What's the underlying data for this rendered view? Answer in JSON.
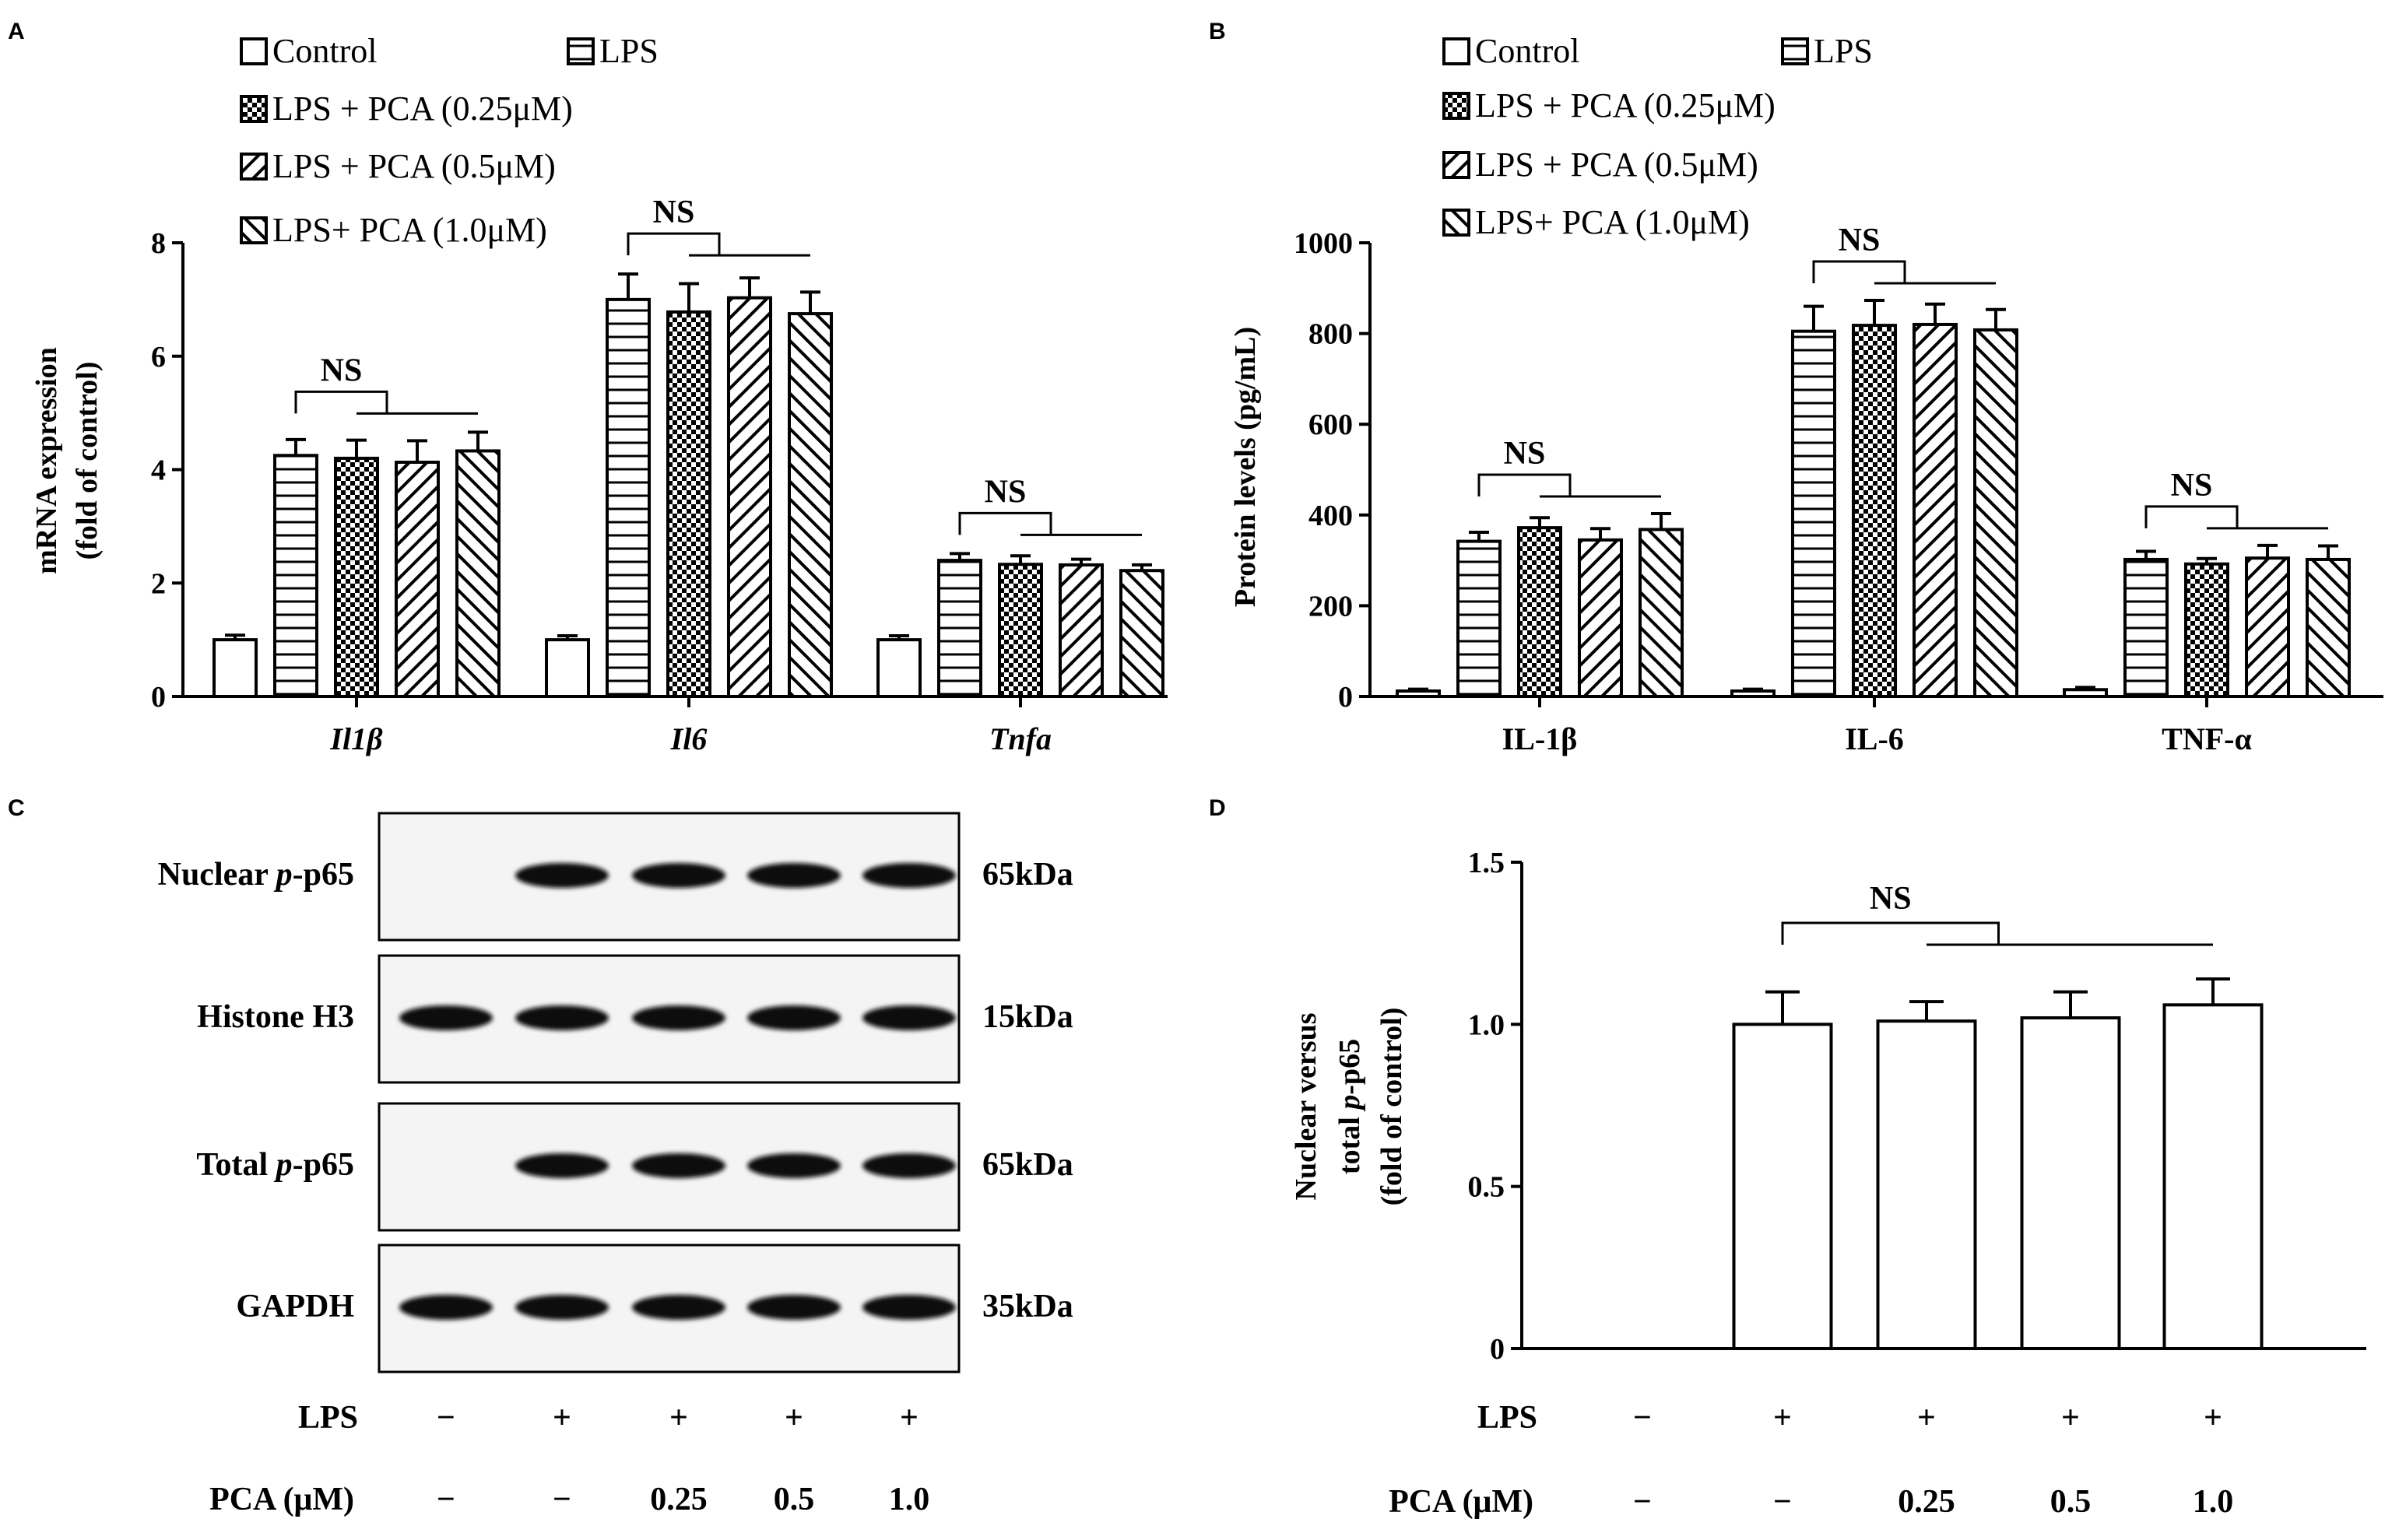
{
  "panels": {
    "A": "A",
    "B": "B",
    "C": "C",
    "D": "D"
  },
  "legend": {
    "control": "Control",
    "lps": "LPS",
    "pca025": "LPS + PCA (0.25μM)",
    "pca05": "LPS + PCA (0.5μM)",
    "pca10": "LPS+ PCA (1.0μM)"
  },
  "ns_label": "NS",
  "western": {
    "rows": [
      {
        "label_plain": "Nuclear ",
        "label_ital": "p",
        "label_rest": "-p65",
        "kda": "65kDa"
      },
      {
        "label_plain": "Histone H3",
        "label_ital": "",
        "label_rest": "",
        "kda": "15kDa"
      },
      {
        "label_plain": "Total ",
        "label_ital": "p",
        "label_rest": "-p65",
        "kda": "65kDa"
      },
      {
        "label_plain": "GAPDH",
        "label_ital": "",
        "label_rest": "",
        "kda": "35kDa"
      }
    ],
    "bands_present": [
      [
        false,
        true,
        true,
        true,
        true
      ],
      [
        true,
        true,
        true,
        true,
        true
      ],
      [
        false,
        true,
        true,
        true,
        true
      ],
      [
        true,
        true,
        true,
        true,
        true
      ]
    ],
    "lps_label": "LPS",
    "pca_label": "PCA (μM)",
    "lps_values": [
      "−",
      "+",
      "+",
      "+",
      "+"
    ],
    "pca_values": [
      "−",
      "−",
      "0.25",
      "0.5",
      "1.0"
    ]
  },
  "panel_d_conditions": {
    "lps_label": "LPS",
    "pca_label": "PCA (μM)",
    "lps_values": [
      "−",
      "+",
      "+",
      "+",
      "+"
    ],
    "pca_values": [
      "−",
      "−",
      "0.25",
      "0.5",
      "1.0"
    ]
  },
  "colors": {
    "ink": "#000000",
    "bar_fill": "#ffffff",
    "blot_bg": "#f4f4f4",
    "band": "#111111"
  },
  "chart_data": [
    {
      "panel": "A",
      "type": "bar",
      "ylabel_line1": "mRNA expression",
      "ylabel_line2": "(fold of control)",
      "ylim": [
        0,
        8
      ],
      "yticks": [
        "0",
        "2",
        "4",
        "6",
        "8"
      ],
      "categories": [
        "Il1β",
        "Il6",
        "Tnfa"
      ],
      "category_italic": true,
      "series": [
        {
          "name": "Control",
          "pattern": "empty",
          "values": [
            1.0,
            1.0,
            1.0
          ],
          "errors": [
            0.08,
            0.07,
            0.07
          ]
        },
        {
          "name": "LPS",
          "pattern": "hlines",
          "values": [
            4.25,
            7.0,
            2.4
          ],
          "errors": [
            0.28,
            0.45,
            0.12
          ]
        },
        {
          "name": "LPS + PCA (0.25μM)",
          "pattern": "check",
          "values": [
            4.2,
            6.78,
            2.33
          ],
          "errors": [
            0.32,
            0.5,
            0.15
          ]
        },
        {
          "name": "LPS + PCA (0.5μM)",
          "pattern": "diag-fwd",
          "values": [
            4.13,
            7.03,
            2.32
          ],
          "errors": [
            0.38,
            0.35,
            0.1
          ]
        },
        {
          "name": "LPS+ PCA (1.0μM)",
          "pattern": "diag-back",
          "values": [
            4.33,
            6.75,
            2.22
          ],
          "errors": [
            0.33,
            0.38,
            0.1
          ]
        }
      ],
      "ns_groups": [
        0,
        1,
        2
      ]
    },
    {
      "panel": "B",
      "type": "bar",
      "ylabel_line1": "Protein levels (pg/mL)",
      "ylim": [
        0,
        1000
      ],
      "yticks": [
        "0",
        "200",
        "400",
        "600",
        "800",
        "1000"
      ],
      "categories": [
        "IL-1β",
        "IL-6",
        "TNF-α"
      ],
      "category_italic": false,
      "series": [
        {
          "name": "Control",
          "pattern": "empty",
          "values": [
            12,
            12,
            15
          ],
          "errors": [
            4,
            4,
            5
          ]
        },
        {
          "name": "LPS",
          "pattern": "hlines",
          "values": [
            342,
            805,
            302
          ],
          "errors": [
            20,
            55,
            18
          ]
        },
        {
          "name": "LPS + PCA (0.25μM)",
          "pattern": "check",
          "values": [
            372,
            818,
            292
          ],
          "errors": [
            22,
            55,
            12
          ]
        },
        {
          "name": "LPS + PCA (0.5μM)",
          "pattern": "diag-fwd",
          "values": [
            345,
            820,
            305
          ],
          "errors": [
            25,
            45,
            28
          ]
        },
        {
          "name": "LPS+ PCA (1.0μM)",
          "pattern": "diag-back",
          "values": [
            368,
            808,
            302
          ],
          "errors": [
            35,
            45,
            30
          ]
        }
      ],
      "ns_groups": [
        0,
        1,
        2
      ]
    },
    {
      "panel": "D",
      "type": "bar",
      "ylabel_line1": "Nuclear versus",
      "ylabel_line2_plain": "total ",
      "ylabel_line2_ital": "p",
      "ylabel_line2_rest": "-p65",
      "ylabel_line3": "(fold  of  control)",
      "ylim": [
        0,
        1.5
      ],
      "yticks": [
        "0",
        "0.5",
        "1.0",
        "1.5"
      ],
      "values": [
        0,
        1.0,
        1.01,
        1.02,
        1.06
      ],
      "errors": [
        0,
        0.1,
        0.06,
        0.08,
        0.08
      ]
    }
  ]
}
